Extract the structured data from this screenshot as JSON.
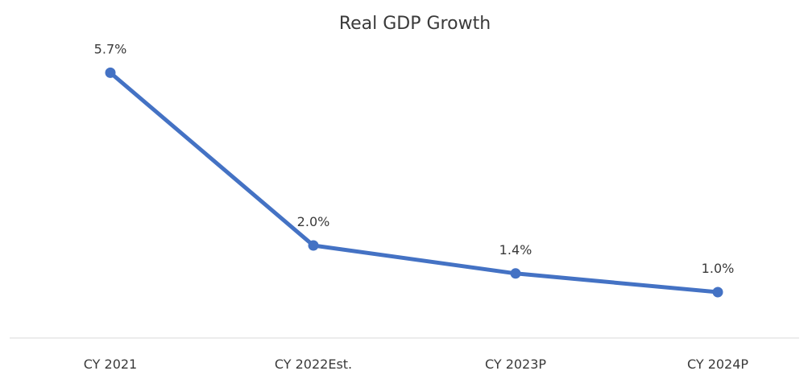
{
  "chart_data": {
    "type": "line",
    "title": "Real GDP Growth",
    "xlabel": "",
    "ylabel": "",
    "categories": [
      "CY 2021",
      "CY 2022Est.",
      "CY 2023P",
      "CY 2024P"
    ],
    "series": [
      {
        "values": [
          5.7,
          2.0,
          1.4,
          1.0
        ],
        "labels": [
          "5.7%",
          "2.0%",
          "1.4%",
          "1.0%"
        ],
        "color": "#4472C4"
      }
    ],
    "ylim": [
      0,
      6
    ],
    "grid": false,
    "legend": "none",
    "axis_color": "#d9d9d9"
  }
}
